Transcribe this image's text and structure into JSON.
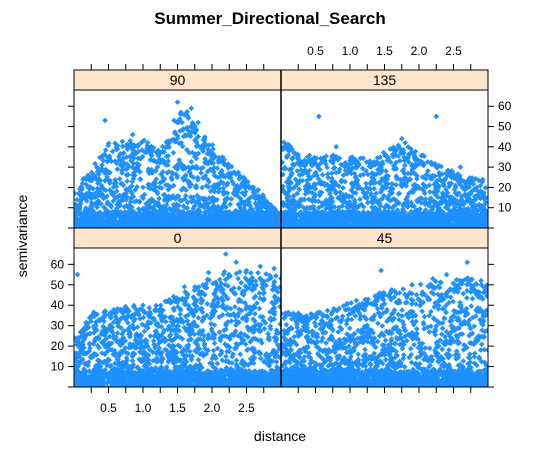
{
  "chart_data": {
    "type": "scatter",
    "title": "Summer_Directional_Search",
    "xlabel": "distance",
    "ylabel": "semivariance",
    "xlim": [
      0,
      3.0
    ],
    "ylim": [
      0,
      68
    ],
    "x_ticks": [
      "0.5",
      "1.0",
      "1.5",
      "2.0",
      "2.5"
    ],
    "y_ticks": [
      "10",
      "20",
      "30",
      "40",
      "50",
      "60"
    ],
    "marker_color": "#1e90ff",
    "strip_color": "#ffe5cc",
    "layout": "2x2 trellis",
    "panels": [
      {
        "name": "90",
        "position": "top-left",
        "point_count": 1400,
        "max_trend": [
          [
            0.0,
            18
          ],
          [
            0.5,
            42
          ],
          [
            1.0,
            44
          ],
          [
            1.3,
            40
          ],
          [
            1.6,
            60
          ],
          [
            1.9,
            45
          ],
          [
            2.3,
            30
          ],
          [
            2.7,
            18
          ],
          [
            3.0,
            6
          ]
        ],
        "peaks": [
          [
            1.5,
            62
          ],
          [
            1.7,
            59
          ],
          [
            1.55,
            57
          ],
          [
            1.65,
            55
          ],
          [
            1.45,
            53
          ],
          [
            0.45,
            53
          ],
          [
            1.8,
            52
          ],
          [
            0.85,
            46
          ]
        ]
      },
      {
        "name": "135",
        "position": "top-right",
        "point_count": 1400,
        "max_trend": [
          [
            0.0,
            44
          ],
          [
            0.3,
            36
          ],
          [
            0.8,
            36
          ],
          [
            1.3,
            34
          ],
          [
            1.75,
            42
          ],
          [
            2.2,
            34
          ],
          [
            2.6,
            26
          ],
          [
            3.0,
            24
          ]
        ],
        "peaks": [
          [
            0.55,
            55
          ],
          [
            2.25,
            55
          ],
          [
            1.75,
            44
          ],
          [
            1.8,
            42
          ],
          [
            0.8,
            40
          ],
          [
            2.6,
            30
          ]
        ]
      },
      {
        "name": "0",
        "position": "bottom-left",
        "point_count": 1500,
        "max_trend": [
          [
            0.0,
            24
          ],
          [
            0.3,
            38
          ],
          [
            0.8,
            40
          ],
          [
            1.3,
            42
          ],
          [
            1.8,
            50
          ],
          [
            2.2,
            58
          ],
          [
            2.7,
            56
          ],
          [
            3.0,
            54
          ]
        ],
        "peaks": [
          [
            2.2,
            65
          ],
          [
            2.35,
            61
          ],
          [
            2.7,
            59
          ],
          [
            2.9,
            58
          ],
          [
            2.5,
            57
          ],
          [
            1.95,
            56
          ],
          [
            0.05,
            55
          ],
          [
            1.6,
            49
          ]
        ]
      },
      {
        "name": "45",
        "position": "bottom-right",
        "point_count": 1500,
        "max_trend": [
          [
            0.0,
            38
          ],
          [
            0.4,
            36
          ],
          [
            0.9,
            40
          ],
          [
            1.4,
            46
          ],
          [
            1.9,
            50
          ],
          [
            2.3,
            52
          ],
          [
            2.7,
            54
          ],
          [
            3.0,
            50
          ]
        ],
        "peaks": [
          [
            2.7,
            61
          ],
          [
            1.45,
            57
          ],
          [
            2.4,
            55
          ],
          [
            2.2,
            53
          ],
          [
            2.9,
            52
          ],
          [
            1.9,
            50
          ]
        ]
      }
    ]
  }
}
